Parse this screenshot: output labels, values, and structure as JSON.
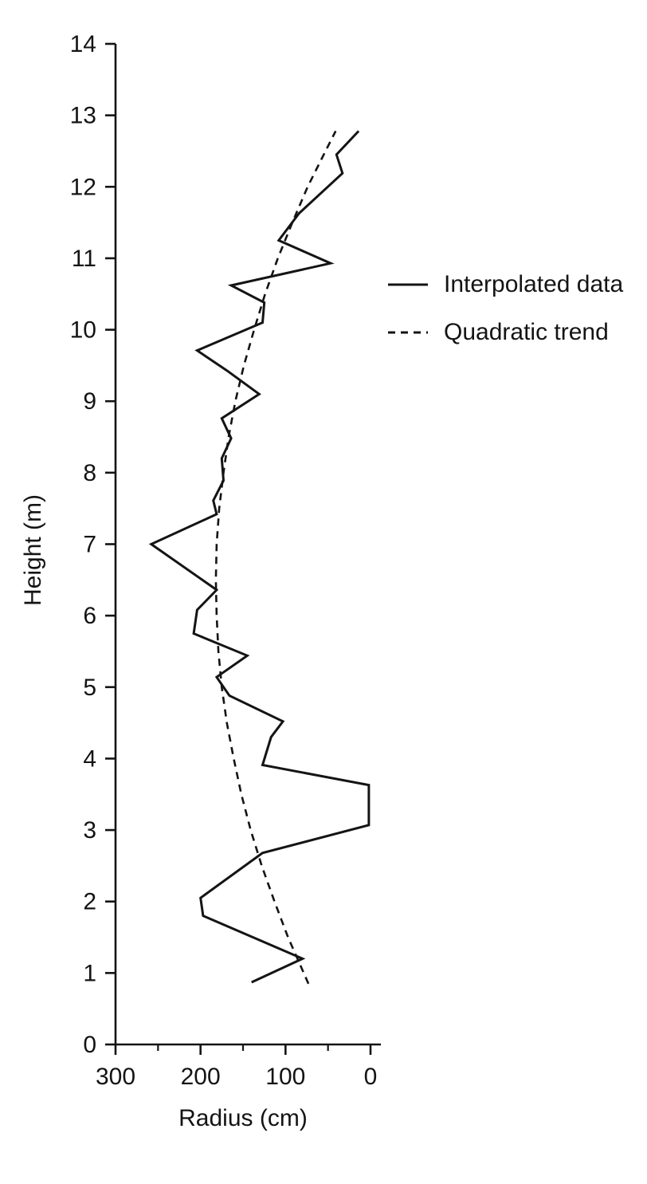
{
  "figure": {
    "background": "#ffffff",
    "line_color": "#141414"
  },
  "legend": {
    "position": "right",
    "entries": [
      "Interpolated data",
      "Quadratic trend"
    ]
  },
  "chart_data": {
    "type": "line",
    "title": "",
    "xlabel": "Radius (cm)",
    "ylabel": "Height (m)",
    "grid": false,
    "x_axis": {
      "min": 0,
      "max": 300,
      "reversed": true,
      "major_ticks": [
        300,
        200,
        100,
        0
      ],
      "major_tick_labels": [
        "300",
        "200",
        "100",
        "0"
      ],
      "minor_ticks": [
        250,
        150,
        50
      ]
    },
    "y_axis": {
      "min": 0,
      "max": 14,
      "ticks": [
        0,
        1,
        2,
        3,
        4,
        5,
        6,
        7,
        8,
        9,
        10,
        11,
        12,
        13,
        14
      ],
      "tick_labels": [
        "0",
        "1",
        "2",
        "3",
        "4",
        "5",
        "6",
        "7",
        "8",
        "9",
        "10",
        "11",
        "12",
        "13",
        "14"
      ]
    },
    "series": [
      {
        "name": "Interpolated data",
        "style": "solid",
        "color": "#141414",
        "points_height_radius": [
          [
            0.87,
            140
          ],
          [
            1.2,
            80
          ],
          [
            1.8,
            197
          ],
          [
            2.05,
            200
          ],
          [
            2.68,
            127
          ],
          [
            3.07,
            2
          ],
          [
            3.63,
            2
          ],
          [
            3.91,
            127
          ],
          [
            4.3,
            117
          ],
          [
            4.52,
            103
          ],
          [
            4.88,
            166
          ],
          [
            5.14,
            181
          ],
          [
            5.44,
            145
          ],
          [
            5.75,
            208
          ],
          [
            6.08,
            204
          ],
          [
            6.36,
            181
          ],
          [
            7.0,
            258
          ],
          [
            7.42,
            181
          ],
          [
            7.61,
            185
          ],
          [
            7.89,
            173
          ],
          [
            8.2,
            175
          ],
          [
            8.48,
            164
          ],
          [
            8.76,
            175
          ],
          [
            9.1,
            131
          ],
          [
            9.43,
            169
          ],
          [
            9.71,
            204
          ],
          [
            10.1,
            127
          ],
          [
            10.38,
            125
          ],
          [
            10.62,
            164
          ],
          [
            10.93,
            47
          ],
          [
            11.25,
            108
          ],
          [
            11.63,
            84
          ],
          [
            12.19,
            33
          ],
          [
            12.45,
            40
          ],
          [
            12.78,
            14
          ]
        ]
      },
      {
        "name": "Quadratic trend",
        "style": "dashed",
        "color": "#141414",
        "points_height_radius": [
          [
            0.85,
            73
          ],
          [
            1.5,
            97
          ],
          [
            2.0,
            113
          ],
          [
            2.5,
            128
          ],
          [
            3.0,
            141
          ],
          [
            3.5,
            152
          ],
          [
            4.0,
            161
          ],
          [
            4.5,
            169
          ],
          [
            5.0,
            175
          ],
          [
            5.5,
            179
          ],
          [
            6.0,
            181
          ],
          [
            6.5,
            182
          ],
          [
            7.0,
            181
          ],
          [
            7.5,
            178
          ],
          [
            8.0,
            173
          ],
          [
            8.5,
            167
          ],
          [
            9.0,
            159
          ],
          [
            9.5,
            149
          ],
          [
            10.0,
            137
          ],
          [
            10.5,
            124
          ],
          [
            11.0,
            109
          ],
          [
            11.5,
            92
          ],
          [
            12.0,
            74
          ],
          [
            12.5,
            53
          ],
          [
            12.78,
            41
          ]
        ]
      }
    ]
  }
}
